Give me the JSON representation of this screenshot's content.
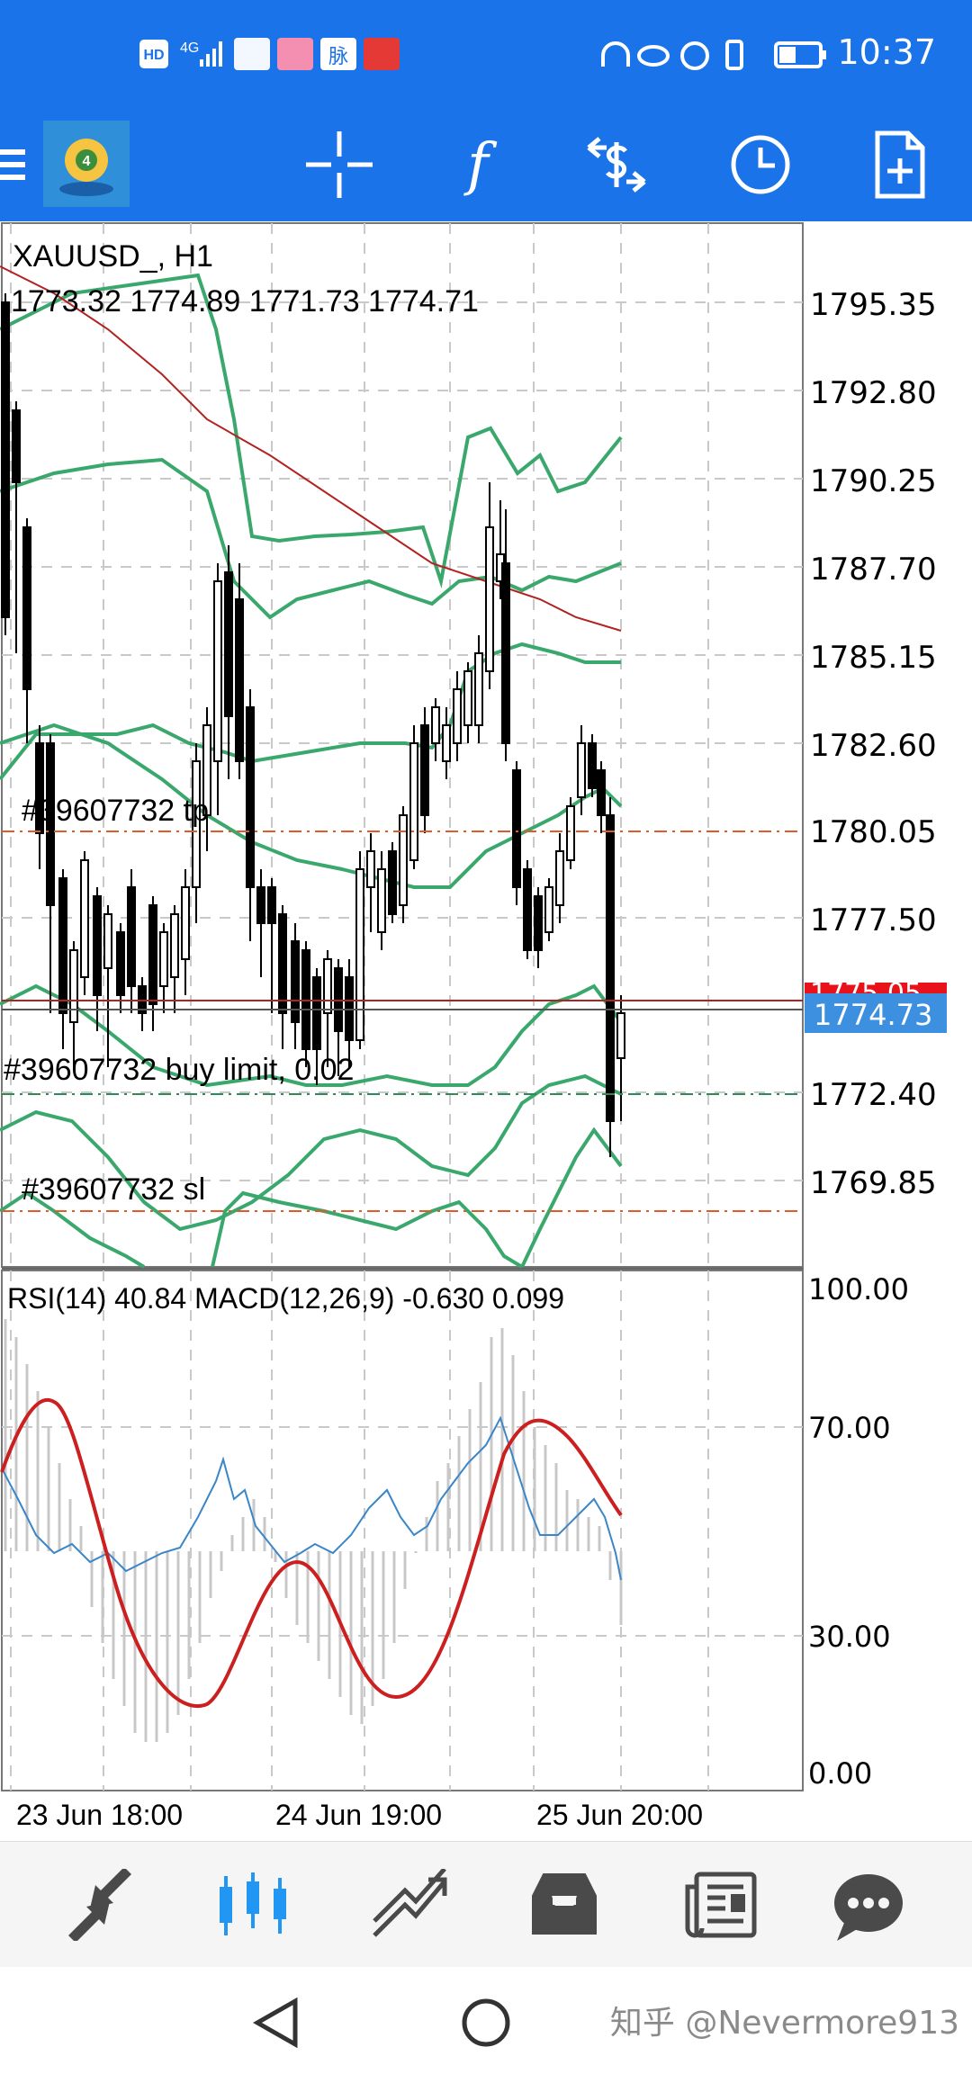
{
  "status_bar": {
    "time": "10:37",
    "indicators": [
      "HD",
      "4G",
      "signal-icon",
      "app-icon",
      "app-icon",
      "脉",
      "huawei-app-icon",
      "headphone-icon",
      "eye-icon",
      "alarm-icon",
      "vibrate-icon",
      "battery-icon"
    ],
    "hd_label": "HD",
    "net_label": "4G",
    "app_label": "脉"
  },
  "toolbar": {
    "icons": [
      "menu-icon",
      "metatrader-logo-icon",
      "crosshair-icon",
      "function-icon",
      "trade-icon",
      "period-icon",
      "new-order-icon"
    ],
    "function_label": "f"
  },
  "main_chart": {
    "symbol": "XAUUSD_, H1",
    "ohlc": "1773.32 1774.89 1771.73 1774.71",
    "price_ticks": [
      "1795.35",
      "1792.80",
      "1790.25",
      "1787.70",
      "1785.15",
      "1782.60",
      "1780.05",
      "1777.50",
      "1772.40",
      "1769.85"
    ],
    "current_price_label": "1774.73",
    "ask_price_label": "1775.05",
    "order_tp_label": "#39607732 tp",
    "order_buy_limit_label": "#39607732 buy limit, 0.02",
    "order_sl_label": "#39607732 sl",
    "colors": {
      "bands": "#3aa86c",
      "ma": "#b22222",
      "tp_line": "#e05a2a",
      "buy_limit_line": "#2e8b57",
      "sl_line": "#e05a2a",
      "current_label_bg": "#3d8fe0",
      "ask_label_bg": "#e8131a"
    }
  },
  "sub_chart": {
    "indicator_label": "RSI(14) 40.84 MACD(12,26,9) -0.630 0.099",
    "ticks": [
      "100.00",
      "70.00",
      "30.00",
      "0.00"
    ],
    "colors": {
      "rsi": "#3a86c8",
      "macd_signal": "#cc1f1f",
      "macd_hist": "#c8c8c8"
    }
  },
  "time_axis": {
    "labels": [
      "23 Jun 18:00",
      "24 Jun 19:00",
      "25 Jun 20:00"
    ]
  },
  "bottom_nav": {
    "items": [
      "quotes-icon",
      "chart-icon",
      "trade-icon",
      "history-icon",
      "news-icon",
      "chat-icon"
    ],
    "active_color": "#2196f3"
  },
  "system_nav": {
    "items": [
      "back-icon",
      "home-icon"
    ],
    "watermark": "知乎 @Nevermore913"
  }
}
